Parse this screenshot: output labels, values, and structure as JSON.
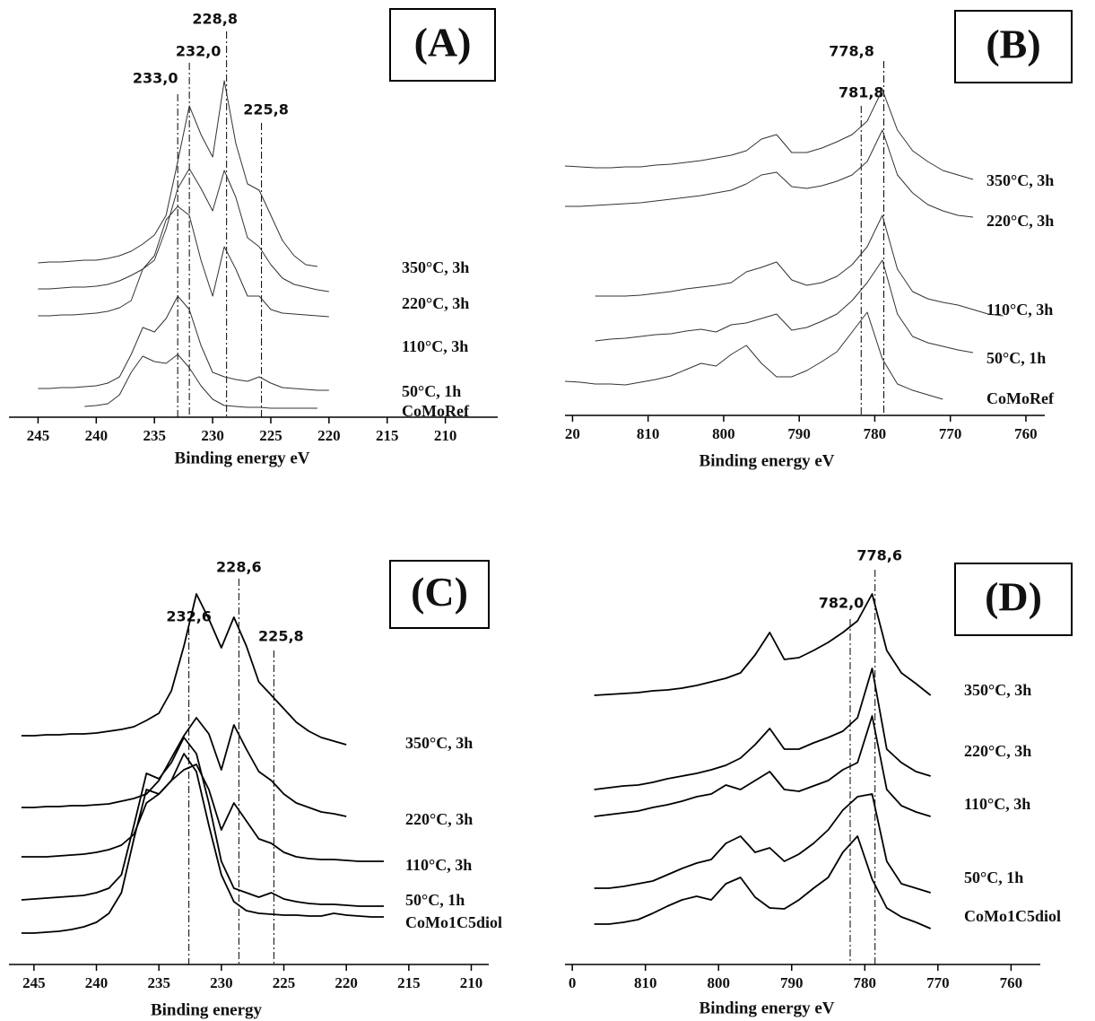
{
  "chart_data": [
    {
      "type": "line",
      "panel_label": "(A)",
      "x_label": "Binding energy eV",
      "xlim": [
        247.5,
        205.5
      ],
      "xticks": [
        245,
        240,
        235,
        230,
        225,
        220,
        215,
        210
      ],
      "ylim": [
        0,
        455
      ],
      "reference_lines": [
        {
          "value": 233.0,
          "label": "233,0"
        },
        {
          "value": 232.0,
          "label": "232,0"
        },
        {
          "value": 228.8,
          "label": "228,8"
        },
        {
          "value": 225.8,
          "label": "225,8"
        }
      ],
      "x": [
        245,
        244,
        243,
        242,
        241,
        240,
        239,
        238,
        237,
        236,
        235,
        234,
        233,
        232,
        231,
        230,
        229,
        228,
        227,
        226,
        225,
        224,
        223,
        222,
        221,
        220
      ],
      "series": [
        {
          "name": "350°C, 3h",
          "color": "#333333",
          "values": [
            172,
            173,
            173,
            174,
            175,
            175,
            177,
            180,
            185,
            193,
            203,
            225,
            285,
            347,
            315,
            290,
            375,
            305,
            260,
            253,
            225,
            197,
            180,
            170,
            168,
            null
          ]
        },
        {
          "name": "220°C, 3h",
          "color": "#333333",
          "values": [
            143,
            143,
            144,
            145,
            145,
            146,
            148,
            152,
            158,
            165,
            175,
            210,
            255,
            277,
            255,
            230,
            275,
            245,
            200,
            190,
            170,
            155,
            148,
            145,
            142,
            140
          ]
        },
        {
          "name": "110°C, 3h",
          "color": "#333333",
          "values": [
            113,
            113,
            114,
            114,
            115,
            116,
            118,
            122,
            130,
            165,
            180,
            220,
            235,
            225,
            175,
            135,
            190,
            165,
            135,
            135,
            120,
            116,
            115,
            114,
            113,
            112
          ]
        },
        {
          "name": "50°C, 1h",
          "color": "#333333",
          "values": [
            32,
            32,
            33,
            33,
            34,
            35,
            38,
            45,
            70,
            100,
            95,
            110,
            135,
            120,
            80,
            50,
            45,
            42,
            40,
            45,
            38,
            33,
            32,
            31,
            30,
            30
          ]
        },
        {
          "name": "CoMoRef",
          "color": "#333333",
          "values": [
            null,
            null,
            null,
            null,
            12,
            13,
            15,
            25,
            50,
            68,
            62,
            60,
            70,
            55,
            35,
            20,
            13,
            12,
            11,
            11,
            10,
            10,
            10,
            10,
            10,
            null
          ]
        }
      ]
    },
    {
      "type": "line",
      "panel_label": "(B)",
      "x_label": "Binding energy eV",
      "xlim": [
        821,
        757.5
      ],
      "xticks": [
        {
          "value": 820,
          "label": "20"
        },
        810,
        800,
        790,
        780,
        770,
        760
      ],
      "ylim": [
        0,
        453
      ],
      "reference_lines": [
        {
          "value": 781.8,
          "label": "781,8"
        },
        {
          "value": 778.8,
          "label": "778,8"
        }
      ],
      "x": [
        821,
        819,
        817,
        815,
        813,
        811,
        809,
        807,
        805,
        803,
        801,
        799,
        797,
        795,
        793,
        791,
        789,
        787,
        785,
        783,
        781,
        779,
        777,
        775,
        773,
        771,
        769,
        767,
        765,
        763
      ],
      "series": [
        {
          "name": "350°C, 3h",
          "color": "#333333",
          "values": [
            278,
            277,
            276,
            276,
            277,
            277,
            279,
            280,
            282,
            284,
            287,
            290,
            295,
            308,
            313,
            293,
            293,
            298,
            305,
            313,
            328,
            363,
            318,
            295,
            283,
            273,
            268,
            263,
            null,
            null
          ]
        },
        {
          "name": "220°C, 3h",
          "color": "#333333",
          "values": [
            233,
            233,
            234,
            235,
            236,
            237,
            239,
            241,
            243,
            245,
            248,
            251,
            258,
            268,
            271,
            255,
            253,
            256,
            261,
            268,
            283,
            318,
            268,
            248,
            235,
            228,
            223,
            221,
            null,
            null
          ]
        },
        {
          "name": "110°C, 3h",
          "color": "#333333",
          "values": [
            null,
            null,
            133,
            133,
            133,
            134,
            136,
            138,
            141,
            143,
            145,
            148,
            160,
            165,
            171,
            151,
            145,
            148,
            155,
            168,
            188,
            223,
            163,
            138,
            130,
            126,
            123,
            118,
            113,
            111
          ]
        },
        {
          "name": "50°C, 1h",
          "color": "#333333",
          "values": [
            null,
            null,
            83,
            85,
            86,
            88,
            90,
            91,
            94,
            96,
            93,
            101,
            103,
            108,
            113,
            95,
            98,
            105,
            113,
            128,
            148,
            173,
            113,
            88,
            81,
            77,
            73,
            70,
            null,
            null
          ]
        },
        {
          "name": "CoMoRef",
          "color": "#333333",
          "values": [
            38,
            37,
            35,
            35,
            34,
            37,
            40,
            44,
            51,
            58,
            55,
            68,
            78,
            58,
            43,
            43,
            50,
            60,
            71,
            93,
            115,
            63,
            35,
            28,
            23,
            18,
            null,
            null,
            null,
            null
          ]
        }
      ]
    },
    {
      "type": "line",
      "panel_label": "(C)",
      "x_label": "Binding energy",
      "xlim": [
        247,
        208.6
      ],
      "xticks": [
        245,
        240,
        235,
        230,
        225,
        220,
        215,
        210
      ],
      "ylim": [
        0,
        455
      ],
      "reference_lines": [
        {
          "value": 232.6,
          "label": "232,6"
        },
        {
          "value": 228.6,
          "label": "228,6"
        },
        {
          "value": 225.8,
          "label": "225,8"
        }
      ],
      "x": [
        246,
        245,
        244,
        243,
        242,
        241,
        240,
        239,
        238,
        237,
        236,
        235,
        234,
        233,
        232,
        231,
        230,
        229,
        228,
        227,
        226,
        225,
        224,
        223,
        222,
        221,
        220,
        219,
        218,
        217
      ],
      "series": [
        {
          "name": "350°C, 3h",
          "color": "#000000",
          "values": [
            255,
            255,
            256,
            256,
            257,
            257,
            258,
            260,
            262,
            265,
            272,
            280,
            305,
            355,
            413,
            385,
            353,
            387,
            355,
            315,
            300,
            285,
            270,
            260,
            253,
            249,
            245,
            null,
            null,
            null
          ]
        },
        {
          "name": "220°C, 3h",
          "color": "#000000",
          "values": [
            175,
            175,
            176,
            176,
            177,
            177,
            178,
            179,
            182,
            185,
            190,
            205,
            230,
            255,
            275,
            257,
            217,
            267,
            240,
            215,
            205,
            190,
            180,
            175,
            170,
            168,
            165,
            null,
            null,
            null
          ]
        },
        {
          "name": "110°C, 3h",
          "color": "#000000",
          "values": [
            120,
            120,
            120,
            121,
            122,
            123,
            125,
            128,
            133,
            145,
            180,
            190,
            205,
            217,
            223,
            195,
            150,
            180,
            160,
            140,
            135,
            125,
            120,
            118,
            117,
            117,
            116,
            115,
            115,
            115
          ]
        },
        {
          "name": "50°C, 1h",
          "color": "#000000",
          "values": [
            72,
            73,
            74,
            75,
            76,
            77,
            80,
            85,
            100,
            155,
            213,
            207,
            225,
            253,
            235,
            180,
            115,
            85,
            80,
            75,
            80,
            73,
            70,
            68,
            67,
            67,
            66,
            65,
            65,
            65
          ]
        },
        {
          "name": "CoMo1C5diol",
          "color": "#000000",
          "values": [
            35,
            35,
            36,
            37,
            39,
            42,
            47,
            57,
            80,
            140,
            195,
            190,
            205,
            235,
            215,
            155,
            100,
            70,
            60,
            57,
            56,
            55,
            55,
            54,
            54,
            57,
            55,
            54,
            53,
            53
          ]
        }
      ]
    },
    {
      "type": "line",
      "panel_label": "(D)",
      "x_label": "Binding energy eV",
      "xlim": [
        821,
        756
      ],
      "xticks": [
        {
          "value": 820,
          "label": "0"
        },
        810,
        800,
        790,
        780,
        770,
        760
      ],
      "ylim": [
        0,
        455
      ],
      "reference_lines": [
        {
          "value": 782.0,
          "label": "782,0"
        },
        {
          "value": 778.6,
          "label": "778,6"
        }
      ],
      "x": [
        817,
        815,
        813,
        811,
        809,
        807,
        805,
        803,
        801,
        799,
        797,
        795,
        793,
        791,
        789,
        787,
        785,
        783,
        781,
        779,
        777,
        775,
        773,
        771
      ],
      "series": [
        {
          "name": "350°C, 3h",
          "color": "#000000",
          "values": [
            300,
            301,
            302,
            303,
            305,
            306,
            308,
            311,
            315,
            319,
            325,
            345,
            370,
            340,
            342,
            350,
            359,
            370,
            383,
            413,
            350,
            325,
            313,
            300
          ]
        },
        {
          "name": "220°C, 3h",
          "color": "#000000",
          "values": [
            195,
            197,
            199,
            200,
            203,
            207,
            210,
            213,
            217,
            222,
            230,
            245,
            263,
            240,
            240,
            247,
            253,
            260,
            275,
            330,
            240,
            225,
            215,
            210
          ]
        },
        {
          "name": "110°C, 3h",
          "color": "#000000",
          "values": [
            165,
            167,
            169,
            171,
            175,
            178,
            182,
            187,
            190,
            200,
            195,
            205,
            215,
            195,
            193,
            199,
            205,
            217,
            225,
            277,
            195,
            177,
            170,
            165
          ]
        },
        {
          "name": "50°C, 1h",
          "color": "#000000",
          "values": [
            85,
            85,
            87,
            90,
            93,
            100,
            107,
            113,
            117,
            135,
            143,
            125,
            130,
            115,
            123,
            135,
            150,
            172,
            187,
            190,
            115,
            90,
            85,
            80
          ]
        },
        {
          "name": "CoMo1C5diol",
          "color": "#000000",
          "values": [
            45,
            45,
            47,
            50,
            57,
            65,
            72,
            76,
            72,
            90,
            97,
            75,
            63,
            62,
            72,
            85,
            97,
            125,
            143,
            95,
            63,
            53,
            47,
            40
          ]
        }
      ]
    }
  ]
}
